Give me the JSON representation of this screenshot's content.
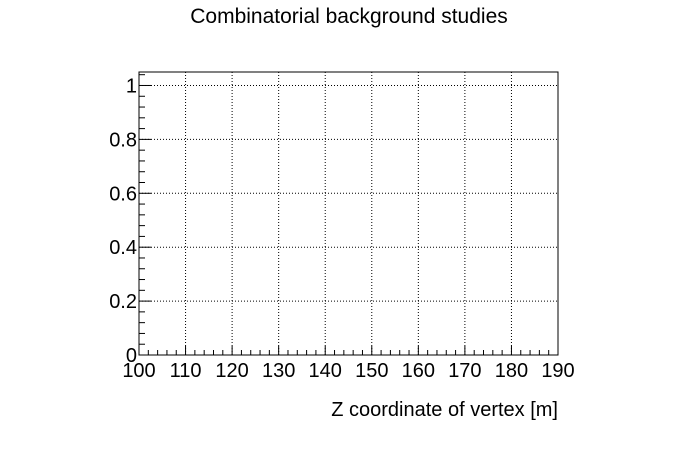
{
  "chart_data": {
    "type": "line",
    "title": "Combinatorial background studies",
    "xlabel": "Z coordinate of vertex [m]",
    "ylabel": "",
    "xlim": [
      100,
      190
    ],
    "ylim": [
      0,
      1.05
    ],
    "x_ticks": [
      100,
      110,
      120,
      130,
      140,
      150,
      160,
      170,
      180,
      190
    ],
    "x_tick_labels": [
      "100",
      "110",
      "120",
      "130",
      "140",
      "150",
      "160",
      "170",
      "180",
      "190"
    ],
    "y_ticks": [
      0,
      0.2,
      0.4,
      0.6,
      0.8,
      1
    ],
    "y_tick_labels": [
      "0",
      "0.2",
      "0.4",
      "0.6",
      "0.8",
      "1"
    ],
    "grid": true,
    "grid_style": "dotted",
    "series": []
  }
}
